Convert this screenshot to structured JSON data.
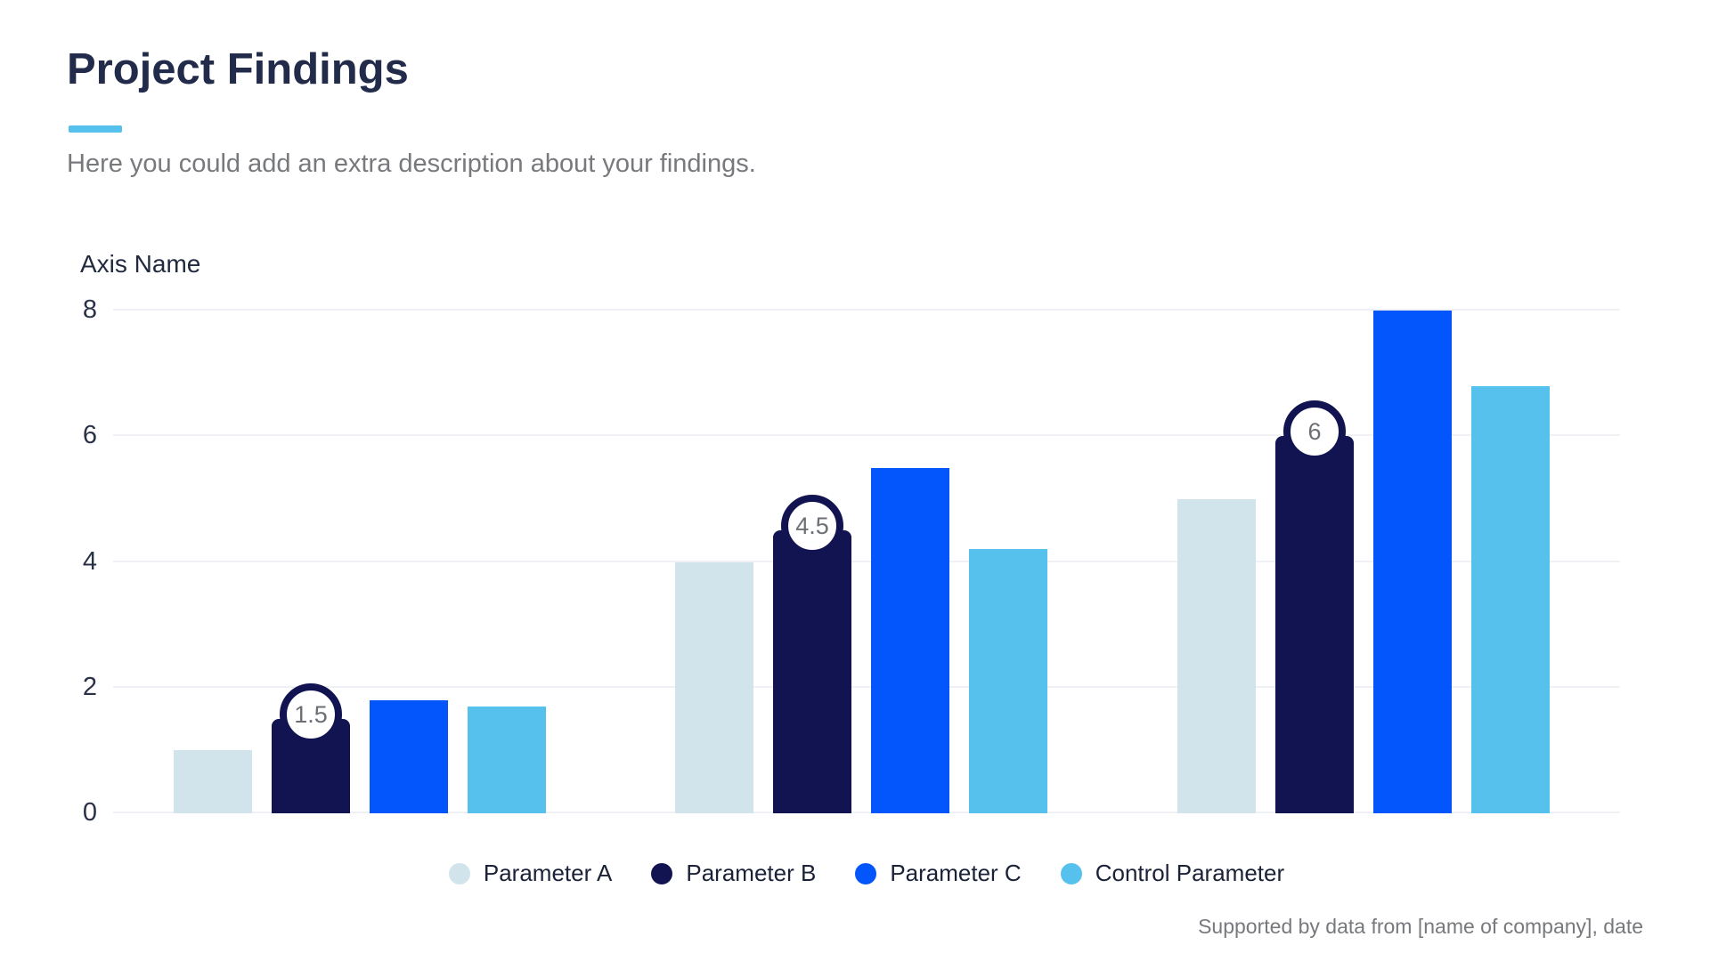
{
  "header": {
    "title": "Project Findings",
    "subtitle": "Here you could add an extra description about your findings.",
    "accent_color": "#55c1ec"
  },
  "chart_data": {
    "type": "bar",
    "title": "Project Findings",
    "axis_title": "Axis Name",
    "ylim": [
      0,
      8
    ],
    "yticks": [
      0,
      2,
      4,
      6,
      8
    ],
    "grid": "horizontal",
    "legend_position": "bottom-center",
    "categories": [
      "",
      "",
      ""
    ],
    "series": [
      {
        "name": "Parameter A",
        "color": "#d1e4ec",
        "values": [
          1,
          4,
          5
        ]
      },
      {
        "name": "Parameter B",
        "color": "#121452",
        "values": [
          1.5,
          4.5,
          6
        ],
        "rounded_top": true,
        "value_badges": [
          "1.5",
          "4.5",
          "6"
        ]
      },
      {
        "name": "Parameter C",
        "color": "#0356fb",
        "values": [
          1.8,
          5.5,
          8
        ]
      },
      {
        "name": "Control Parameter",
        "color": "#55c1ec",
        "values": [
          1.7,
          4.2,
          6.8
        ]
      }
    ]
  },
  "footer": {
    "note": "Supported by data from [name of company], date"
  }
}
